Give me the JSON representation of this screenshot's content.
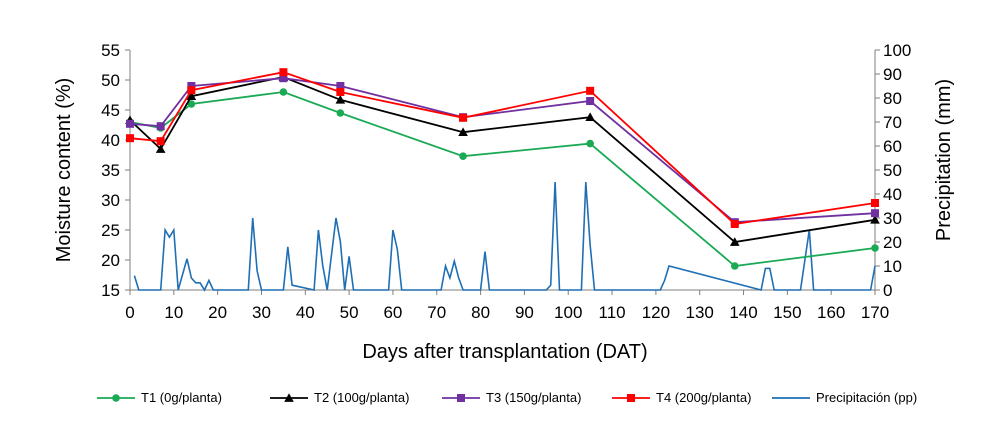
{
  "chart_data": {
    "type": "line",
    "xlabel": "Days after transplantation (DAT)",
    "ylabel": "Moisture content (%)",
    "y2label": "Precipitation (mm)",
    "xlim": [
      0,
      170
    ],
    "xticks": [
      0,
      10,
      20,
      30,
      40,
      50,
      60,
      70,
      80,
      90,
      100,
      110,
      120,
      130,
      140,
      150,
      160,
      170
    ],
    "ylim": [
      15,
      55
    ],
    "yticks": [
      15,
      20,
      25,
      30,
      35,
      40,
      45,
      50,
      55
    ],
    "y2lim": [
      0,
      100
    ],
    "y2ticks": [
      0,
      10,
      20,
      30,
      40,
      50,
      60,
      70,
      80,
      90,
      100
    ],
    "grid": false,
    "legend_position": "bottom",
    "series": [
      {
        "name": "T1 (0g/planta)",
        "color": "#1aaa55",
        "marker": "circle",
        "axis": "left",
        "x": [
          0,
          7,
          14,
          35,
          48,
          76,
          105,
          138,
          170
        ],
        "y": [
          43,
          42,
          46,
          48,
          44.5,
          37.3,
          39.4,
          19,
          22
        ]
      },
      {
        "name": "T2 (100g/planta)",
        "color": "#000000",
        "marker": "triangle",
        "axis": "left",
        "x": [
          0,
          7,
          14,
          35,
          48,
          76,
          105,
          138,
          170
        ],
        "y": [
          43.3,
          38.5,
          47.3,
          50.5,
          46.7,
          41.3,
          43.8,
          23,
          26.7
        ]
      },
      {
        "name": "T3 (150g/planta)",
        "color": "#7030a0",
        "marker": "square",
        "axis": "left",
        "x": [
          0,
          7,
          14,
          35,
          48,
          76,
          105,
          138,
          170
        ],
        "y": [
          42.7,
          42.3,
          49,
          50.3,
          49,
          43.8,
          46.5,
          26.3,
          27.8
        ]
      },
      {
        "name": "T4 (200g/planta)",
        "color": "#ff0000",
        "marker": "square",
        "axis": "left",
        "x": [
          0,
          7,
          14,
          35,
          48,
          76,
          105,
          138,
          170
        ],
        "y": [
          40.3,
          39.8,
          48.3,
          51.3,
          48,
          43.7,
          48.2,
          26,
          29.5
        ]
      },
      {
        "name": "Precipitación (pp)",
        "color": "#1f6fb4",
        "marker": "none",
        "axis": "right",
        "x": [
          1,
          2,
          7,
          8,
          9,
          10,
          11,
          13,
          14,
          15,
          16,
          17,
          18,
          19,
          20,
          27,
          28,
          29,
          30,
          35,
          36,
          37,
          42,
          43,
          44,
          45,
          47,
          48,
          49,
          50,
          51,
          52,
          59,
          60,
          61,
          62,
          71,
          72,
          73,
          74,
          75,
          76,
          80,
          81,
          82,
          95,
          96,
          97,
          98,
          103,
          104,
          105,
          106,
          121,
          122,
          123,
          144,
          145,
          146,
          147,
          153,
          155,
          156,
          169,
          170
        ],
        "y": [
          6,
          0,
          0,
          25,
          22,
          25,
          0,
          13,
          5,
          3,
          3,
          0,
          4,
          0,
          0,
          0,
          30,
          8,
          0,
          0,
          18,
          2,
          0,
          25,
          10,
          0,
          30,
          20,
          0,
          14,
          0,
          0,
          0,
          25,
          17,
          0,
          0,
          10,
          5,
          12,
          5,
          0,
          0,
          16,
          0,
          0,
          2,
          45,
          0,
          0,
          45,
          19,
          0,
          0,
          4,
          10,
          0,
          9,
          9,
          0,
          0,
          25,
          0,
          0,
          10
        ]
      }
    ]
  }
}
